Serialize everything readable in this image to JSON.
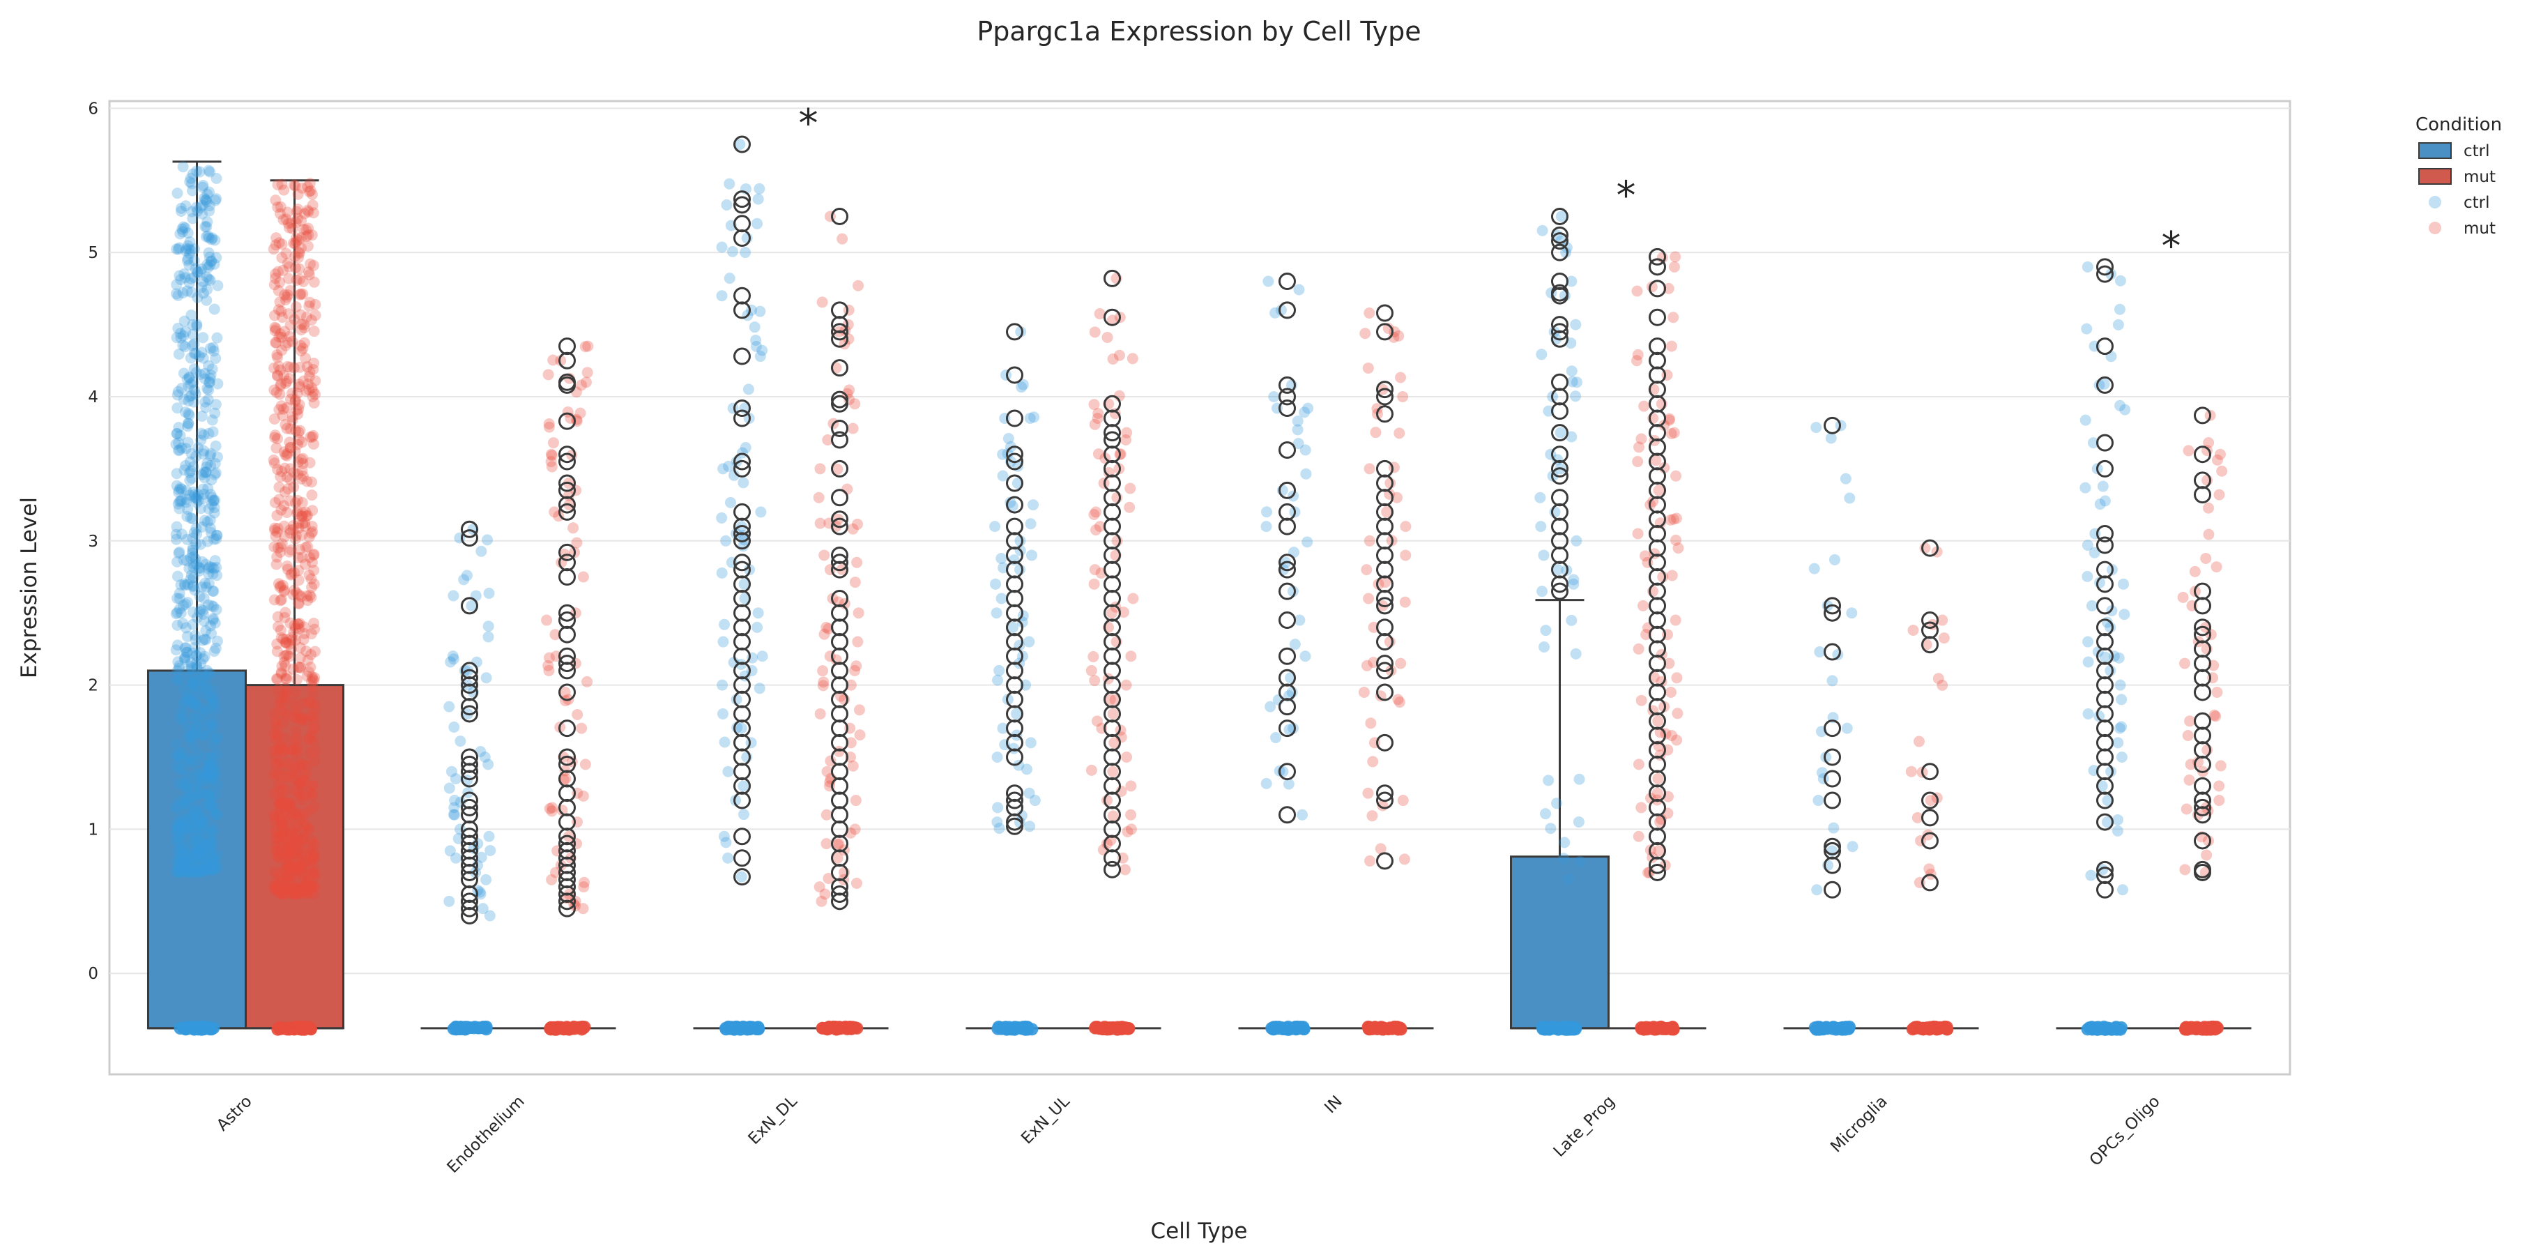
{
  "chart_data": {
    "type": "box",
    "title": "Ppargc1a Expression by Cell Type",
    "xlabel": "Cell Type",
    "ylabel": "Expression Level",
    "ylim": [
      -0.7,
      6.05
    ],
    "yticks": [
      0,
      1,
      2,
      3,
      4,
      5,
      6
    ],
    "grid": true,
    "legend": {
      "title": "Condition",
      "placement": "outside-top-right",
      "entries": [
        {
          "label": "ctrl",
          "kind": "box"
        },
        {
          "label": "mut",
          "kind": "box"
        },
        {
          "label": "ctrl",
          "kind": "point"
        },
        {
          "label": "mut",
          "kind": "point"
        }
      ]
    },
    "colors": {
      "ctrl_box": "#4a90c4",
      "mut_box": "#d05a4e",
      "ctrl_point": "#3498db",
      "mut_point": "#e74c3c",
      "edge": "#3a3a3a",
      "grid": "#e6e6e6"
    },
    "categories": [
      "Astro",
      "Endothelium",
      "ExN_DL",
      "ExN_UL",
      "IN",
      "Late_Prog",
      "Microglia",
      "OPCs_Oligo"
    ],
    "significance": [
      {
        "category": "ExN_DL",
        "label": "*",
        "y": 5.9
      },
      {
        "category": "Late_Prog",
        "label": "*",
        "y": 5.4
      },
      {
        "category": "OPCs_Oligo",
        "label": "*",
        "y": 5.05
      }
    ],
    "series": [
      {
        "name": "ctrl",
        "boxes": [
          {
            "category": "Astro",
            "q1": -0.38,
            "median": -0.38,
            "q3": 2.1,
            "whisker_low": -0.38,
            "whisker_high": 5.63,
            "points_range": [
              0.7,
              5.6
            ],
            "outliers": []
          },
          {
            "category": "Endothelium",
            "q1": -0.38,
            "median": -0.38,
            "q3": -0.38,
            "whisker_low": -0.38,
            "whisker_high": -0.38,
            "points_range": [
              0.4,
              3.1
            ],
            "outliers": [
              3.08,
              3.02,
              2.55,
              2.1,
              2.05,
              2.0,
              1.95,
              1.85,
              1.8,
              1.5,
              1.45,
              1.4,
              1.35,
              1.2,
              1.15,
              1.1,
              1.0,
              0.95,
              0.9,
              0.85,
              0.8,
              0.75,
              0.7,
              0.65,
              0.55,
              0.5,
              0.45,
              0.4
            ]
          },
          {
            "category": "ExN_DL",
            "q1": -0.38,
            "median": -0.38,
            "q3": -0.38,
            "whisker_low": -0.38,
            "whisker_high": -0.38,
            "points_range": [
              0.65,
              5.75
            ],
            "outliers": [
              5.75,
              5.37,
              5.33,
              5.2,
              5.1,
              4.7,
              4.6,
              4.28,
              3.92,
              3.85,
              3.55,
              3.5,
              3.2,
              3.1,
              3.05,
              3.0,
              2.85,
              2.8,
              2.7,
              2.6,
              2.5,
              2.4,
              2.3,
              2.2,
              2.1,
              2.0,
              1.9,
              1.8,
              1.7,
              1.6,
              1.5,
              1.4,
              1.3,
              1.2,
              0.95,
              0.8,
              0.67
            ]
          },
          {
            "category": "ExN_UL",
            "q1": -0.38,
            "median": -0.38,
            "q3": -0.38,
            "whisker_low": -0.38,
            "whisker_high": -0.38,
            "points_range": [
              1.0,
              4.45
            ],
            "outliers": [
              4.45,
              4.15,
              3.85,
              3.6,
              3.55,
              3.4,
              3.25,
              3.1,
              3.0,
              2.9,
              2.8,
              2.7,
              2.6,
              2.5,
              2.4,
              2.3,
              2.2,
              2.1,
              2.0,
              1.9,
              1.8,
              1.7,
              1.6,
              1.5,
              1.25,
              1.2,
              1.15,
              1.05,
              1.02
            ]
          },
          {
            "category": "IN",
            "q1": -0.38,
            "median": -0.38,
            "q3": -0.38,
            "whisker_low": -0.38,
            "whisker_high": -0.38,
            "points_range": [
              1.1,
              4.8
            ],
            "outliers": [
              4.8,
              4.6,
              4.08,
              4.0,
              3.92,
              3.63,
              3.35,
              3.2,
              3.1,
              2.85,
              2.8,
              2.65,
              2.45,
              2.2,
              2.05,
              1.95,
              1.85,
              1.7,
              1.4,
              1.1
            ]
          },
          {
            "category": "Late_Prog",
            "q1": -0.38,
            "median": -0.38,
            "q3": 0.81,
            "whisker_low": -0.38,
            "whisker_high": 2.59,
            "points_range": [
              0.6,
              5.25
            ],
            "outliers": [
              5.25,
              5.12,
              5.08,
              5.0,
              4.8,
              4.72,
              4.7,
              4.5,
              4.45,
              4.4,
              4.1,
              4.0,
              3.9,
              3.75,
              3.6,
              3.5,
              3.45,
              3.3,
              3.2,
              3.1,
              3.0,
              2.9,
              2.8,
              2.7,
              2.65
            ]
          },
          {
            "category": "Microglia",
            "q1": -0.38,
            "median": -0.38,
            "q3": -0.38,
            "whisker_low": -0.38,
            "whisker_high": -0.38,
            "points_range": [
              0.6,
              3.8
            ],
            "outliers": [
              3.8,
              2.55,
              2.5,
              2.23,
              1.7,
              1.5,
              1.35,
              1.2,
              0.88,
              0.85,
              0.75,
              0.58
            ]
          },
          {
            "category": "OPCs_Oligo",
            "q1": -0.38,
            "median": -0.38,
            "q3": -0.38,
            "whisker_low": -0.38,
            "whisker_high": -0.38,
            "points_range": [
              0.6,
              4.9
            ],
            "outliers": [
              4.9,
              4.85,
              4.35,
              4.08,
              3.68,
              3.5,
              3.05,
              2.97,
              2.8,
              2.7,
              2.55,
              2.4,
              2.3,
              2.2,
              2.1,
              2.0,
              1.9,
              1.8,
              1.7,
              1.6,
              1.5,
              1.4,
              1.3,
              1.2,
              1.05,
              0.72,
              0.68,
              0.58
            ]
          }
        ]
      },
      {
        "name": "mut",
        "boxes": [
          {
            "category": "Astro",
            "q1": -0.38,
            "median": -0.38,
            "q3": 2.0,
            "whisker_low": -0.38,
            "whisker_high": 5.5,
            "points_range": [
              0.55,
              5.5
            ],
            "outliers": []
          },
          {
            "category": "Endothelium",
            "q1": -0.38,
            "median": -0.38,
            "q3": -0.38,
            "whisker_low": -0.38,
            "whisker_high": -0.38,
            "points_range": [
              0.45,
              4.35
            ],
            "outliers": [
              4.35,
              4.25,
              4.1,
              4.08,
              3.83,
              3.6,
              3.55,
              3.4,
              3.35,
              3.25,
              3.2,
              2.92,
              2.85,
              2.75,
              2.5,
              2.45,
              2.35,
              2.2,
              2.15,
              2.1,
              1.95,
              1.7,
              1.5,
              1.45,
              1.35,
              1.25,
              1.15,
              1.05,
              0.95,
              0.9,
              0.85,
              0.8,
              0.75,
              0.7,
              0.65,
              0.6,
              0.55,
              0.5,
              0.45
            ]
          },
          {
            "category": "ExN_DL",
            "q1": -0.38,
            "median": -0.38,
            "q3": -0.38,
            "whisker_low": -0.38,
            "whisker_high": -0.38,
            "points_range": [
              0.48,
              5.25
            ],
            "outliers": [
              5.25,
              4.6,
              4.5,
              4.45,
              4.4,
              4.2,
              3.98,
              3.95,
              3.78,
              3.7,
              3.5,
              3.3,
              3.15,
              3.1,
              2.9,
              2.85,
              2.8,
              2.6,
              2.5,
              2.4,
              2.3,
              2.2,
              2.1,
              2.0,
              1.9,
              1.8,
              1.7,
              1.6,
              1.5,
              1.4,
              1.3,
              1.2,
              1.1,
              1.0,
              0.9,
              0.8,
              0.7,
              0.6,
              0.55,
              0.5
            ]
          },
          {
            "category": "ExN_UL",
            "q1": -0.38,
            "median": -0.38,
            "q3": -0.38,
            "whisker_low": -0.38,
            "whisker_high": -0.38,
            "points_range": [
              0.72,
              4.82
            ],
            "outliers": [
              4.82,
              4.55,
              3.95,
              3.85,
              3.75,
              3.7,
              3.6,
              3.5,
              3.4,
              3.3,
              3.2,
              3.1,
              3.0,
              2.9,
              2.8,
              2.7,
              2.6,
              2.5,
              2.4,
              2.3,
              2.2,
              2.1,
              2.0,
              1.9,
              1.8,
              1.7,
              1.6,
              1.5,
              1.4,
              1.3,
              1.2,
              1.1,
              1.0,
              0.9,
              0.8,
              0.72
            ]
          },
          {
            "category": "IN",
            "q1": -0.38,
            "median": -0.38,
            "q3": -0.38,
            "whisker_low": -0.38,
            "whisker_high": -0.38,
            "points_range": [
              0.78,
              4.58
            ],
            "outliers": [
              4.58,
              4.45,
              4.05,
              4.0,
              3.88,
              3.5,
              3.4,
              3.3,
              3.2,
              3.1,
              3.0,
              2.9,
              2.8,
              2.7,
              2.6,
              2.55,
              2.4,
              2.3,
              2.15,
              2.1,
              1.95,
              1.6,
              1.25,
              1.2,
              0.78
            ]
          },
          {
            "category": "Late_Prog",
            "q1": -0.38,
            "median": -0.38,
            "q3": -0.38,
            "whisker_low": -0.38,
            "whisker_high": -0.38,
            "points_range": [
              0.68,
              4.97
            ],
            "outliers": [
              4.97,
              4.9,
              4.75,
              4.55,
              4.35,
              4.25,
              4.15,
              4.05,
              3.95,
              3.85,
              3.75,
              3.65,
              3.55,
              3.45,
              3.35,
              3.25,
              3.15,
              3.05,
              2.95,
              2.85,
              2.75,
              2.65,
              2.55,
              2.45,
              2.35,
              2.25,
              2.15,
              2.05,
              1.95,
              1.85,
              1.75,
              1.65,
              1.55,
              1.45,
              1.35,
              1.25,
              1.15,
              1.05,
              0.95,
              0.85,
              0.75,
              0.7
            ]
          },
          {
            "category": "Microglia",
            "q1": -0.38,
            "median": -0.38,
            "q3": -0.38,
            "whisker_low": -0.38,
            "whisker_high": -0.38,
            "points_range": [
              0.62,
              2.95
            ],
            "outliers": [
              2.95,
              2.45,
              2.38,
              2.28,
              1.4,
              1.2,
              1.08,
              0.92,
              0.63
            ]
          },
          {
            "category": "OPCs_Oligo",
            "q1": -0.38,
            "median": -0.38,
            "q3": -0.38,
            "whisker_low": -0.38,
            "whisker_high": -0.38,
            "points_range": [
              0.7,
              3.87
            ],
            "outliers": [
              3.87,
              3.6,
              3.42,
              3.32,
              2.65,
              2.55,
              2.4,
              2.35,
              2.25,
              2.15,
              2.05,
              1.95,
              1.75,
              1.65,
              1.55,
              1.45,
              1.3,
              1.2,
              1.15,
              1.1,
              0.92,
              0.72,
              0.7
            ]
          }
        ]
      }
    ]
  }
}
